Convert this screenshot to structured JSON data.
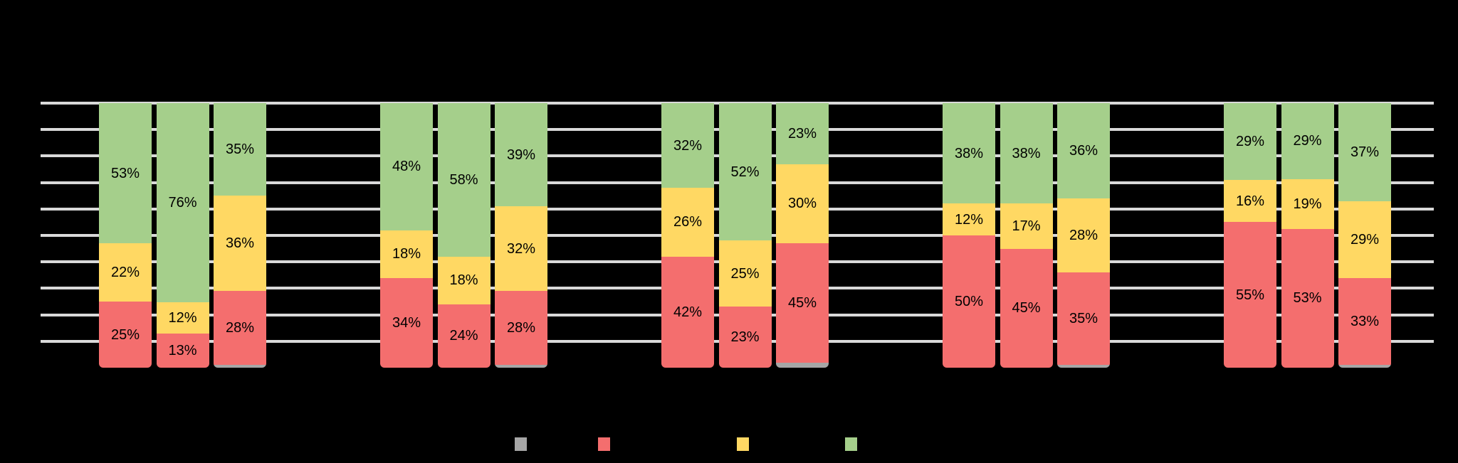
{
  "chart_data": {
    "type": "bar",
    "variant": "100-percent-stacked-column",
    "value_unit": "%",
    "axis": {
      "y_min": 0,
      "y_max": 100,
      "gridline_step_percent": 10,
      "gridlines_drawn_at_percent": [
        10,
        20,
        30,
        40,
        50,
        60,
        70,
        80,
        90,
        100
      ],
      "baseline_gridline_drawn": false
    },
    "segment_order_bottom_to_top": [
      "gray",
      "red",
      "yellow",
      "green"
    ],
    "labeled_segments": [
      "red",
      "yellow",
      "green"
    ],
    "colors": {
      "gray": "#A6A6A6",
      "red": "#F46E6E",
      "yellow": "#FFD863",
      "green": "#A5CF8B",
      "gridline": "#D9D9D9",
      "label_text": "#000000",
      "background": "#000000"
    },
    "groups": [
      {
        "bars": [
          {
            "gray": 0,
            "red": 25,
            "yellow": 22,
            "green": 53
          },
          {
            "gray": 0,
            "red": 13,
            "yellow": 12,
            "green": 76
          },
          {
            "gray": 1,
            "red": 28,
            "yellow": 36,
            "green": 35
          }
        ]
      },
      {
        "bars": [
          {
            "gray": 0,
            "red": 34,
            "yellow": 18,
            "green": 48
          },
          {
            "gray": 0,
            "red": 24,
            "yellow": 18,
            "green": 58
          },
          {
            "gray": 1,
            "red": 28,
            "yellow": 32,
            "green": 39
          }
        ]
      },
      {
        "bars": [
          {
            "gray": 0,
            "red": 42,
            "yellow": 26,
            "green": 32
          },
          {
            "gray": 0,
            "red": 23,
            "yellow": 25,
            "green": 52
          },
          {
            "gray": 2,
            "red": 45,
            "yellow": 30,
            "green": 23
          }
        ]
      },
      {
        "bars": [
          {
            "gray": 0,
            "red": 50,
            "yellow": 12,
            "green": 38
          },
          {
            "gray": 0,
            "red": 45,
            "yellow": 17,
            "green": 38
          },
          {
            "gray": 1,
            "red": 35,
            "yellow": 28,
            "green": 36
          }
        ]
      },
      {
        "bars": [
          {
            "gray": 0,
            "red": 55,
            "yellow": 16,
            "green": 29
          },
          {
            "gray": 0,
            "red": 53,
            "yellow": 19,
            "green": 29
          },
          {
            "gray": 1,
            "red": 33,
            "yellow": 29,
            "green": 37
          }
        ]
      }
    ],
    "legend": {
      "position": "bottom",
      "swatch_order": [
        "gray",
        "red",
        "yellow",
        "green"
      ]
    }
  }
}
